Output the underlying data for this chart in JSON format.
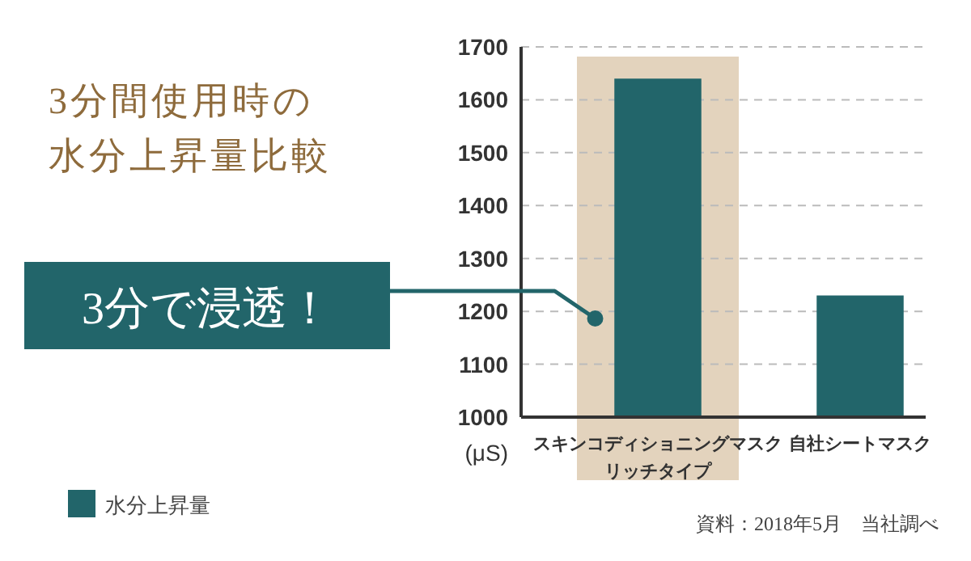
{
  "chart_data": {
    "type": "bar",
    "title": "3分間使用時の水分上昇量比較",
    "categories": [
      "スキンコディショニングマスクリッチタイプ",
      "自社シートマスク"
    ],
    "series": [
      {
        "name": "水分上昇量",
        "color": "#22656a",
        "values": [
          1640,
          1230
        ]
      }
    ],
    "ylabel": "(μS)",
    "ylim": [
      1000,
      1700
    ],
    "yticks": [
      1000,
      1100,
      1200,
      1300,
      1400,
      1500,
      1600,
      1700
    ],
    "grid": "y",
    "legend": "bottom left",
    "bands": [
      {
        "axis": "x",
        "from": "スキンコディショニングマスクリッチタイプ",
        "to": "スキンコディショニングマスクリッチタイプ",
        "color": "#e3d3bd"
      }
    ],
    "annotations": [
      "3分で浸透！",
      "資料：2018年5月　当社調べ"
    ]
  }
}
